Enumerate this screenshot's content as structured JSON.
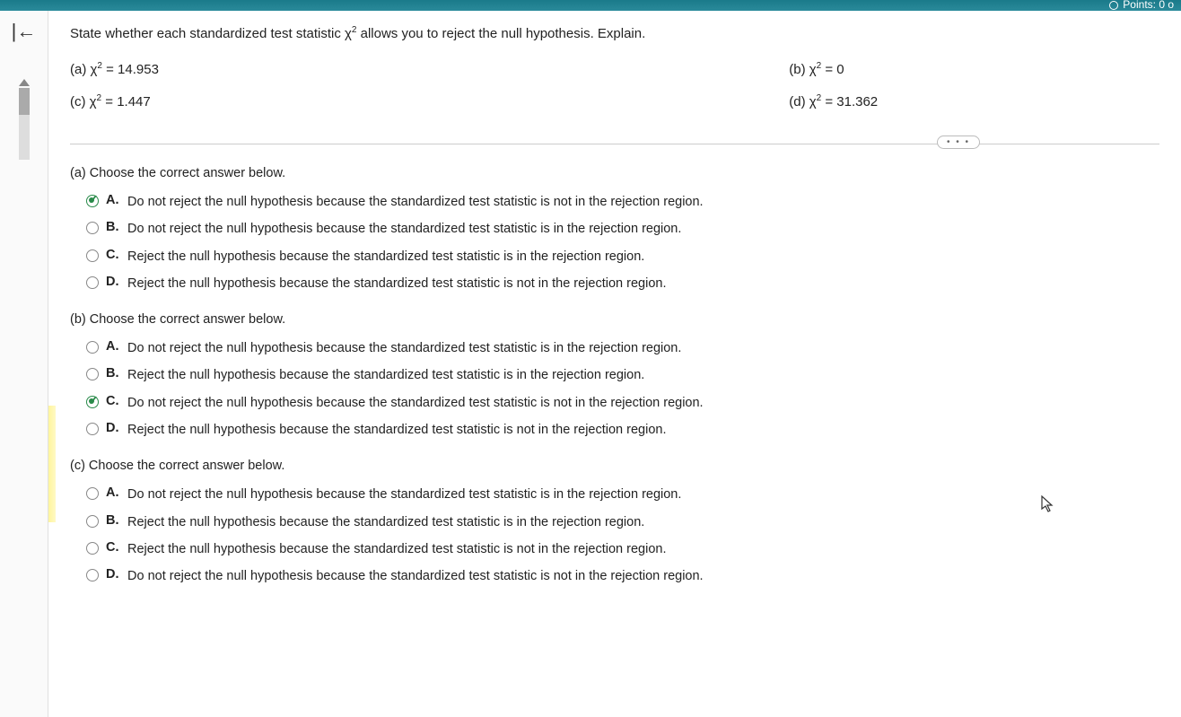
{
  "header": {
    "points_label": "Points: 0 o"
  },
  "question": {
    "prompt": "State whether each standardized test statistic χ² allows you to reject the null hypothesis. Explain.",
    "parts": {
      "a": "(a) χ² = 14.953",
      "b": "(b) χ² = 0",
      "c": "(c) χ² = 1.447",
      "d": "(d) χ² = 31.362"
    }
  },
  "more_button": "• • •",
  "subquestions": [
    {
      "label": "(a) Choose the correct answer below.",
      "selected_index": 0,
      "options": [
        {
          "letter": "A.",
          "text": "Do not reject the null hypothesis because the standardized test statistic is not in the rejection region."
        },
        {
          "letter": "B.",
          "text": "Do not reject the null hypothesis because the standardized test statistic is in the rejection region."
        },
        {
          "letter": "C.",
          "text": "Reject the null hypothesis because the standardized test statistic is in the rejection region."
        },
        {
          "letter": "D.",
          "text": "Reject the null hypothesis because the standardized test statistic is not in the rejection region."
        }
      ]
    },
    {
      "label": "(b) Choose the correct answer below.",
      "selected_index": 2,
      "options": [
        {
          "letter": "A.",
          "text": "Do not reject the null hypothesis because the standardized test statistic is in the rejection region."
        },
        {
          "letter": "B.",
          "text": "Reject the null hypothesis because the standardized test statistic is in the rejection region."
        },
        {
          "letter": "C.",
          "text": "Do not reject the null hypothesis because the standardized test statistic is not in the rejection region."
        },
        {
          "letter": "D.",
          "text": "Reject the null hypothesis because the standardized test statistic is not in the rejection region."
        }
      ]
    },
    {
      "label": "(c) Choose the correct answer below.",
      "selected_index": -1,
      "options": [
        {
          "letter": "A.",
          "text": "Do not reject the null hypothesis because the standardized test statistic is in the rejection region."
        },
        {
          "letter": "B.",
          "text": "Reject the null hypothesis because the standardized test statistic is in the rejection region."
        },
        {
          "letter": "C.",
          "text": "Reject the null hypothesis because the standardized test statistic is not in the rejection region."
        },
        {
          "letter": "D.",
          "text": "Do not reject the null hypothesis because the standardized test statistic is not in the rejection region."
        }
      ]
    }
  ],
  "colors": {
    "top_bar": "#2a8a9a",
    "selected_radio": "#2a8a4a",
    "divider": "#cccccc",
    "background": "#ffffff",
    "text": "#222222"
  }
}
